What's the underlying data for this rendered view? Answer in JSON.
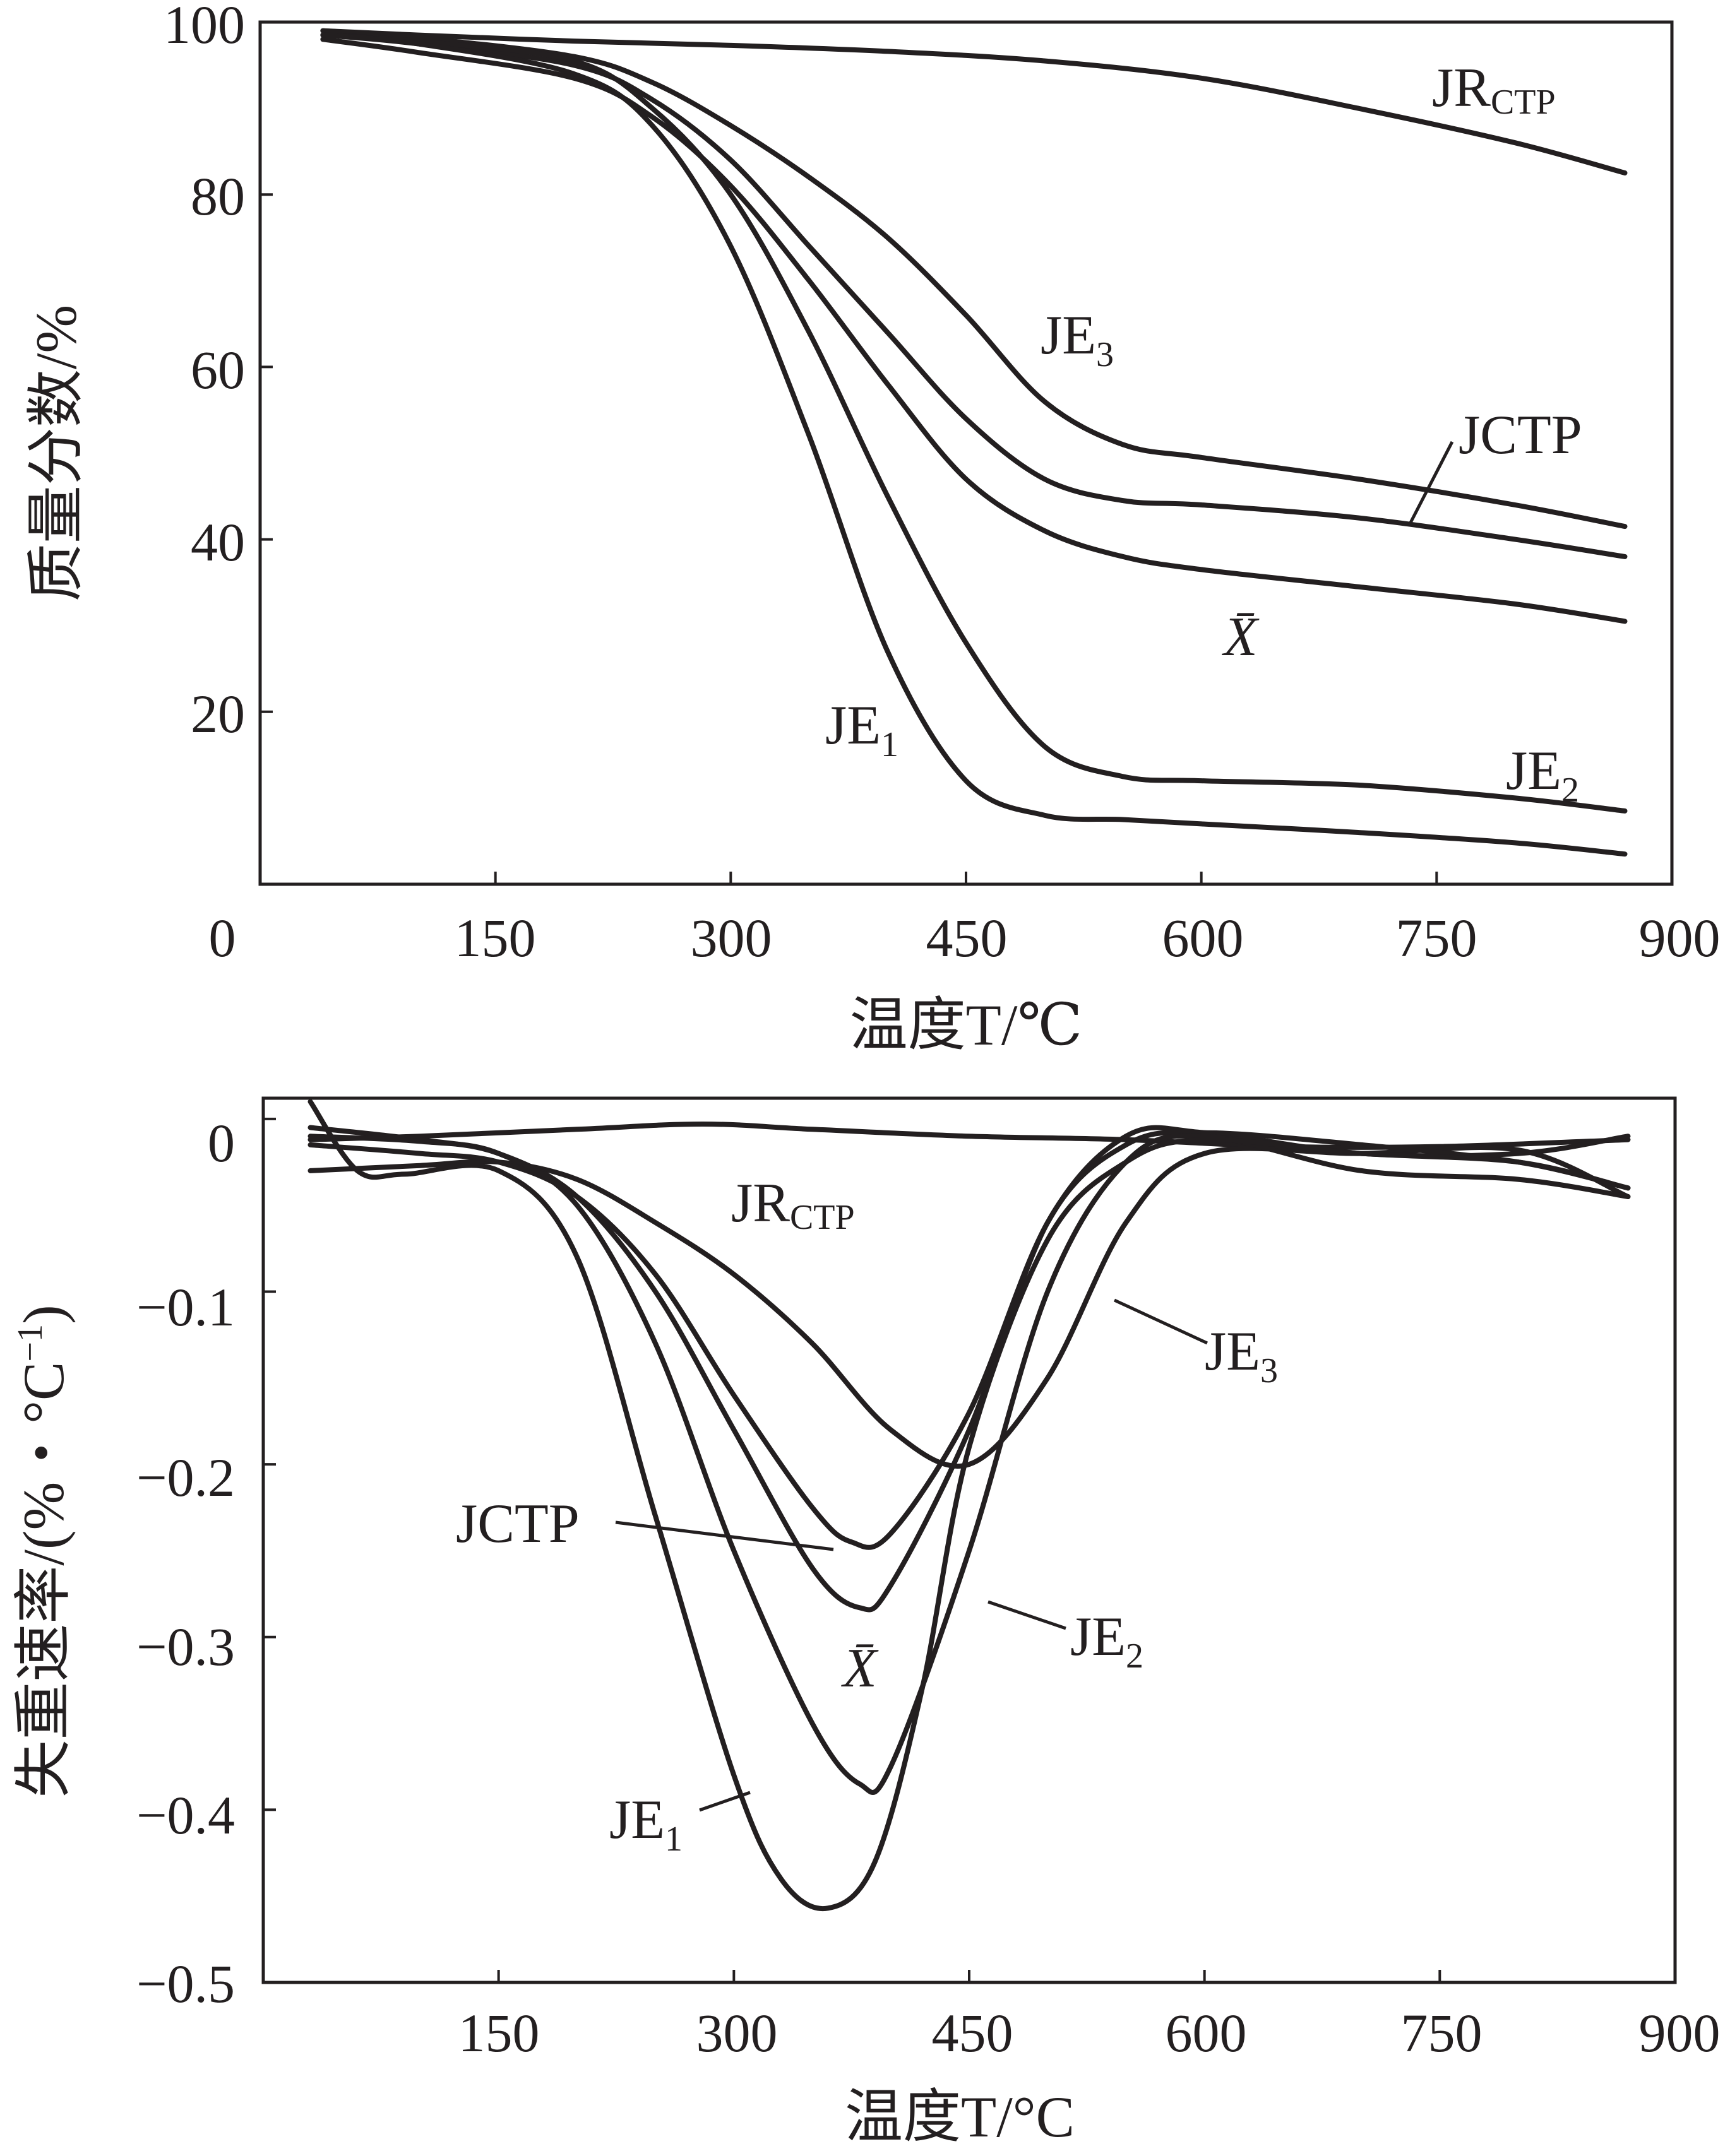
{
  "chart_data": [
    {
      "type": "line",
      "xlabel": "温度T/℃",
      "ylabel": "质量分数/%",
      "xlim": [
        0,
        900
      ],
      "ylim": [
        0,
        100
      ],
      "xticks": [
        "0",
        "150",
        "300",
        "450",
        "600",
        "750",
        "900"
      ],
      "yticks": [
        "20",
        "40",
        "60",
        "80",
        "100"
      ],
      "series": [
        {
          "name": "JR",
          "name_sub": "CTP",
          "x": [
            40,
            100,
            200,
            300,
            400,
            500,
            600,
            700,
            800,
            870
          ],
          "y": [
            99,
            98.5,
            97.8,
            97.3,
            96.6,
            95.5,
            93.5,
            90,
            86,
            82.5
          ]
        },
        {
          "name": "JE",
          "name_sub": "3",
          "x": [
            40,
            100,
            200,
            250,
            300,
            350,
            400,
            450,
            500,
            550,
            600,
            700,
            800,
            870
          ],
          "y": [
            99,
            98.2,
            96,
            93,
            88,
            82,
            75,
            66,
            56,
            51,
            49.5,
            47,
            44,
            41.5
          ]
        },
        {
          "name": "JCTP",
          "x": [
            40,
            100,
            200,
            250,
            300,
            350,
            400,
            450,
            500,
            550,
            600,
            700,
            800,
            870
          ],
          "y": [
            98.5,
            97.5,
            95,
            91,
            84,
            74,
            64,
            54,
            47,
            44.5,
            44,
            42.5,
            40,
            38
          ]
        },
        {
          "name": "X̄",
          "x": [
            40,
            100,
            200,
            250,
            300,
            350,
            400,
            450,
            500,
            550,
            600,
            700,
            800,
            870
          ],
          "y": [
            98,
            96.5,
            93.5,
            89,
            81,
            70,
            58,
            47,
            41,
            38,
            36.5,
            34.5,
            32.5,
            30.5
          ]
        },
        {
          "name": "JE",
          "name_sub": "2",
          "x": [
            40,
            100,
            200,
            250,
            300,
            350,
            400,
            450,
            500,
            550,
            600,
            700,
            800,
            870
          ],
          "y": [
            98.5,
            97.8,
            95.5,
            90,
            80,
            64,
            45,
            28,
            16,
            12.5,
            12,
            11.5,
            10,
            8.5
          ]
        },
        {
          "name": "JE",
          "name_sub": "1",
          "x": [
            40,
            100,
            200,
            250,
            300,
            350,
            400,
            450,
            500,
            550,
            600,
            700,
            800,
            870
          ],
          "y": [
            98.5,
            97.5,
            94,
            88,
            74,
            52,
            27,
            12,
            8,
            7.5,
            7,
            6,
            4.8,
            3.5
          ]
        }
      ]
    },
    {
      "type": "line",
      "xlabel": "温度T/°C",
      "ylabel": "失重速率/(%・°C",
      "ylabel_sup": "−1",
      "ylabel_end": ")",
      "xlim": [
        0,
        900
      ],
      "ylim": [
        -0.5,
        0.012
      ],
      "xticks": [
        "150",
        "300",
        "450",
        "600",
        "750",
        "900"
      ],
      "yticks": [
        "0",
        "−0.1",
        "−0.2",
        "−0.3",
        "−0.4",
        "−0.5"
      ],
      "series": [
        {
          "name": "JR",
          "name_sub": "CTP",
          "x": [
            30,
            100,
            200,
            280,
            350,
            450,
            550,
            650,
            750,
            870
          ],
          "y": [
            -0.012,
            -0.01,
            -0.006,
            -0.003,
            -0.006,
            -0.01,
            -0.012,
            -0.016,
            -0.016,
            -0.012
          ]
        },
        {
          "name": "JE",
          "name_sub": "3",
          "x": [
            30,
            100,
            150,
            200,
            250,
            300,
            350,
            400,
            450,
            500,
            550,
            600,
            700,
            800,
            870
          ],
          "y": [
            -0.03,
            -0.027,
            -0.025,
            -0.035,
            -0.06,
            -0.09,
            -0.13,
            -0.18,
            -0.2,
            -0.15,
            -0.06,
            -0.02,
            -0.02,
            -0.018,
            -0.045
          ]
        },
        {
          "name": "JCTP",
          "x": [
            30,
            100,
            150,
            200,
            250,
            300,
            350,
            375,
            400,
            450,
            500,
            550,
            600,
            700,
            800,
            870
          ],
          "y": [
            -0.015,
            -0.02,
            -0.025,
            -0.045,
            -0.09,
            -0.16,
            -0.225,
            -0.245,
            -0.24,
            -0.17,
            -0.06,
            -0.01,
            -0.008,
            -0.02,
            -0.02,
            -0.01
          ]
        },
        {
          "name": "X̄",
          "x": [
            30,
            100,
            150,
            200,
            250,
            300,
            350,
            380,
            400,
            450,
            500,
            550,
            600,
            700,
            800,
            870
          ],
          "y": [
            -0.005,
            -0.012,
            -0.02,
            -0.045,
            -0.1,
            -0.18,
            -0.26,
            -0.283,
            -0.27,
            -0.18,
            -0.06,
            -0.015,
            -0.008,
            -0.015,
            -0.025,
            -0.04
          ]
        },
        {
          "name": "JE",
          "name_sub": "2",
          "x": [
            30,
            100,
            150,
            200,
            250,
            300,
            350,
            380,
            400,
            450,
            500,
            550,
            600,
            700,
            800,
            870
          ],
          "y": [
            -0.01,
            -0.013,
            -0.02,
            -0.05,
            -0.13,
            -0.25,
            -0.35,
            -0.385,
            -0.375,
            -0.25,
            -0.1,
            -0.025,
            -0.01,
            -0.03,
            -0.035,
            -0.045
          ]
        },
        {
          "name": "JE",
          "name_sub": "1",
          "x": [
            30,
            60,
            90,
            150,
            200,
            250,
            300,
            330,
            360,
            390,
            420,
            450,
            500,
            550,
            600,
            700,
            800,
            870
          ],
          "y": [
            0.01,
            -0.03,
            -0.032,
            -0.03,
            -0.08,
            -0.23,
            -0.38,
            -0.44,
            -0.457,
            -0.43,
            -0.33,
            -0.19,
            -0.07,
            -0.025,
            -0.012,
            -0.02,
            -0.025,
            -0.04
          ]
        }
      ]
    }
  ]
}
